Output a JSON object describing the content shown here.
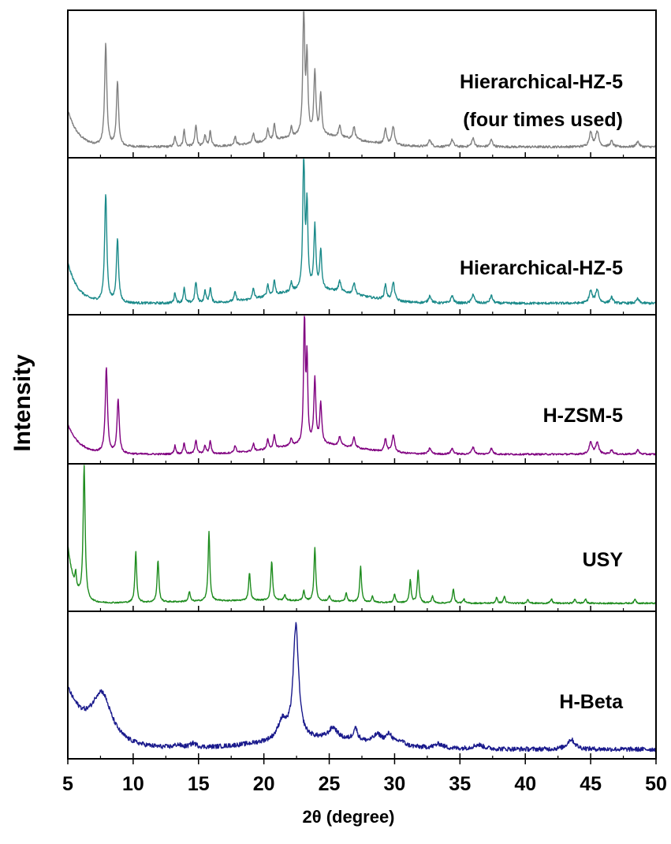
{
  "chart_data": {
    "type": "line",
    "layout": "stacked-panels",
    "xlabel": "2θ (degree)",
    "ylabel": "Intensity",
    "xlim": [
      5,
      50
    ],
    "x_ticks": [
      5,
      10,
      15,
      20,
      25,
      30,
      35,
      40,
      45,
      50
    ],
    "x_tick_labels": [
      "5",
      "10",
      "15",
      "20",
      "25",
      "30",
      "35",
      "40",
      "45",
      "50"
    ],
    "y_ticks_shown": false,
    "grid": false,
    "legend": "none (series labeled inside each panel, right side)",
    "series": [
      {
        "name": "Hierarchical-HZ-5 (four times used)",
        "label_lines": [
          "Hierarchical-HZ-5",
          "(four times used)"
        ],
        "color": "#808080",
        "baseline": 0.06,
        "start_level": 0.32,
        "decay_2theta": 0.8,
        "hump": {
          "center": 24,
          "width": 4.5,
          "height": 0.08
        },
        "noise": 0.008,
        "peaks": [
          [
            7.9,
            0.72,
            0.1
          ],
          [
            8.8,
            0.45,
            0.1
          ],
          [
            13.2,
            0.07,
            0.08
          ],
          [
            13.9,
            0.12,
            0.08
          ],
          [
            14.8,
            0.15,
            0.09
          ],
          [
            15.5,
            0.08,
            0.08
          ],
          [
            15.9,
            0.11,
            0.08
          ],
          [
            17.8,
            0.06,
            0.09
          ],
          [
            19.2,
            0.07,
            0.08
          ],
          [
            20.3,
            0.09,
            0.08
          ],
          [
            20.8,
            0.12,
            0.08
          ],
          [
            22.1,
            0.07,
            0.08
          ],
          [
            23.05,
            0.95,
            0.08
          ],
          [
            23.3,
            0.55,
            0.08
          ],
          [
            23.9,
            0.45,
            0.09
          ],
          [
            24.35,
            0.29,
            0.09
          ],
          [
            25.8,
            0.08,
            0.1
          ],
          [
            26.9,
            0.09,
            0.1
          ],
          [
            29.3,
            0.11,
            0.1
          ],
          [
            29.9,
            0.13,
            0.12
          ],
          [
            32.7,
            0.05,
            0.12
          ],
          [
            34.4,
            0.05,
            0.12
          ],
          [
            36.0,
            0.06,
            0.12
          ],
          [
            37.4,
            0.05,
            0.12
          ],
          [
            45.0,
            0.1,
            0.14
          ],
          [
            45.5,
            0.11,
            0.14
          ],
          [
            46.6,
            0.04,
            0.12
          ],
          [
            48.6,
            0.04,
            0.12
          ]
        ]
      },
      {
        "name": "Hierarchical-HZ-5",
        "label_lines": [
          "Hierarchical-HZ-5"
        ],
        "color": "#1b8a8a",
        "baseline": 0.06,
        "start_level": 0.33,
        "decay_2theta": 0.8,
        "hump": {
          "center": 24,
          "width": 4.5,
          "height": 0.09
        },
        "noise": 0.008,
        "peaks": [
          [
            7.9,
            0.72,
            0.1
          ],
          [
            8.8,
            0.42,
            0.1
          ],
          [
            13.2,
            0.07,
            0.08
          ],
          [
            13.9,
            0.1,
            0.08
          ],
          [
            14.8,
            0.14,
            0.09
          ],
          [
            15.5,
            0.08,
            0.08
          ],
          [
            15.9,
            0.1,
            0.08
          ],
          [
            17.8,
            0.06,
            0.09
          ],
          [
            19.2,
            0.07,
            0.08
          ],
          [
            20.3,
            0.08,
            0.08
          ],
          [
            20.8,
            0.1,
            0.08
          ],
          [
            22.1,
            0.06,
            0.08
          ],
          [
            23.05,
            0.94,
            0.08
          ],
          [
            23.3,
            0.55,
            0.08
          ],
          [
            23.9,
            0.42,
            0.09
          ],
          [
            24.35,
            0.26,
            0.09
          ],
          [
            25.8,
            0.07,
            0.1
          ],
          [
            26.9,
            0.08,
            0.1
          ],
          [
            29.3,
            0.1,
            0.1
          ],
          [
            29.9,
            0.12,
            0.12
          ],
          [
            32.7,
            0.05,
            0.12
          ],
          [
            34.4,
            0.05,
            0.12
          ],
          [
            36.0,
            0.06,
            0.12
          ],
          [
            37.4,
            0.05,
            0.12
          ],
          [
            45.0,
            0.08,
            0.14
          ],
          [
            45.5,
            0.09,
            0.14
          ],
          [
            46.6,
            0.04,
            0.12
          ],
          [
            48.6,
            0.03,
            0.12
          ]
        ]
      },
      {
        "name": "H-ZSM-5",
        "label_lines": [
          "H-ZSM-5"
        ],
        "color": "#800080",
        "baseline": 0.05,
        "start_level": 0.26,
        "decay_2theta": 0.9,
        "hump": {
          "center": 24,
          "width": 4.5,
          "height": 0.07
        },
        "noise": 0.006,
        "peaks": [
          [
            7.95,
            0.6,
            0.1
          ],
          [
            8.85,
            0.38,
            0.1
          ],
          [
            13.2,
            0.06,
            0.08
          ],
          [
            13.9,
            0.08,
            0.08
          ],
          [
            14.8,
            0.1,
            0.09
          ],
          [
            15.5,
            0.06,
            0.08
          ],
          [
            15.9,
            0.09,
            0.08
          ],
          [
            17.8,
            0.05,
            0.09
          ],
          [
            19.2,
            0.05,
            0.08
          ],
          [
            20.3,
            0.07,
            0.08
          ],
          [
            20.8,
            0.09,
            0.08
          ],
          [
            22.1,
            0.05,
            0.08
          ],
          [
            23.1,
            0.93,
            0.07
          ],
          [
            23.3,
            0.58,
            0.07
          ],
          [
            23.9,
            0.45,
            0.09
          ],
          [
            24.35,
            0.28,
            0.09
          ],
          [
            25.8,
            0.06,
            0.1
          ],
          [
            26.9,
            0.07,
            0.1
          ],
          [
            29.3,
            0.09,
            0.1
          ],
          [
            29.9,
            0.12,
            0.12
          ],
          [
            32.7,
            0.04,
            0.12
          ],
          [
            34.4,
            0.04,
            0.12
          ],
          [
            36.0,
            0.05,
            0.12
          ],
          [
            37.4,
            0.04,
            0.12
          ],
          [
            45.0,
            0.08,
            0.14
          ],
          [
            45.5,
            0.08,
            0.14
          ],
          [
            46.6,
            0.03,
            0.12
          ],
          [
            48.6,
            0.03,
            0.12
          ]
        ]
      },
      {
        "name": "USY",
        "label_lines": [
          "USY"
        ],
        "color": "#1e8c1e",
        "baseline": 0.04,
        "start_level": 0.45,
        "decay_2theta": 0.5,
        "hump": {
          "center": 20,
          "width": 8,
          "height": 0.02
        },
        "noise": 0.005,
        "peaks": [
          [
            5.6,
            0.1,
            0.06
          ],
          [
            6.25,
            0.95,
            0.09
          ],
          [
            10.2,
            0.36,
            0.08
          ],
          [
            11.9,
            0.3,
            0.08
          ],
          [
            14.3,
            0.07,
            0.08
          ],
          [
            15.8,
            0.49,
            0.08
          ],
          [
            18.9,
            0.2,
            0.08
          ],
          [
            20.6,
            0.28,
            0.08
          ],
          [
            21.6,
            0.04,
            0.08
          ],
          [
            23.05,
            0.07,
            0.08
          ],
          [
            23.9,
            0.38,
            0.08
          ],
          [
            25.0,
            0.04,
            0.08
          ],
          [
            26.3,
            0.06,
            0.08
          ],
          [
            27.4,
            0.25,
            0.08
          ],
          [
            28.3,
            0.04,
            0.08
          ],
          [
            30.0,
            0.06,
            0.08
          ],
          [
            31.2,
            0.16,
            0.08
          ],
          [
            31.8,
            0.23,
            0.08
          ],
          [
            32.9,
            0.05,
            0.08
          ],
          [
            34.5,
            0.1,
            0.08
          ],
          [
            35.3,
            0.03,
            0.08
          ],
          [
            37.8,
            0.04,
            0.08
          ],
          [
            38.4,
            0.05,
            0.08
          ],
          [
            40.2,
            0.03,
            0.08
          ],
          [
            42.0,
            0.03,
            0.08
          ],
          [
            43.8,
            0.03,
            0.08
          ],
          [
            44.6,
            0.03,
            0.08
          ],
          [
            48.4,
            0.03,
            0.08
          ]
        ]
      },
      {
        "name": "H-Beta",
        "label_lines": [
          "H-Beta"
        ],
        "color": "#1a1a8c",
        "baseline": 0.05,
        "start_level": 0.46,
        "decay_2theta": 1.6,
        "hump": {
          "center": 24,
          "width": 6,
          "height": 0.07
        },
        "noise": 0.016,
        "peaks": [
          [
            7.6,
            0.33,
            0.9
          ],
          [
            13.4,
            0.02,
            0.3
          ],
          [
            14.6,
            0.03,
            0.3
          ],
          [
            21.4,
            0.13,
            0.4
          ],
          [
            22.45,
            0.8,
            0.25
          ],
          [
            25.3,
            0.08,
            0.4
          ],
          [
            27.0,
            0.09,
            0.2
          ],
          [
            28.7,
            0.06,
            0.4
          ],
          [
            29.6,
            0.07,
            0.3
          ],
          [
            30.5,
            0.03,
            0.3
          ],
          [
            33.4,
            0.03,
            0.4
          ],
          [
            36.4,
            0.03,
            0.5
          ],
          [
            43.5,
            0.07,
            0.35
          ]
        ]
      }
    ]
  }
}
